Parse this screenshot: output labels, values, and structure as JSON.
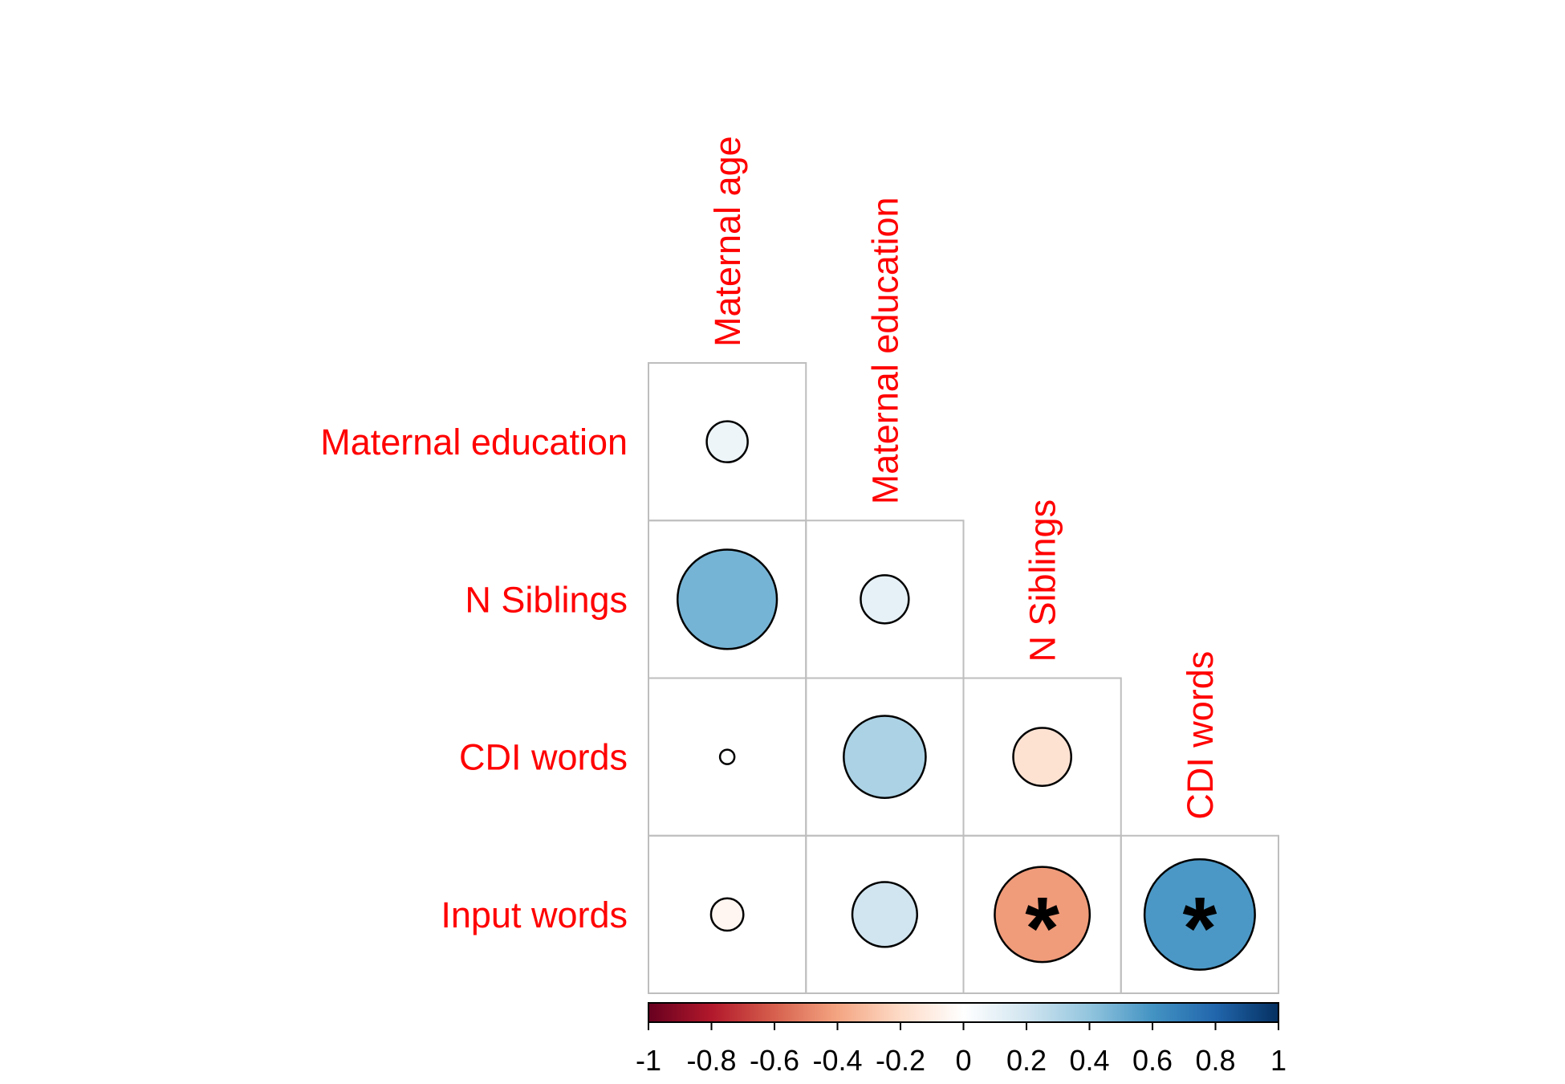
{
  "chart_data": {
    "type": "heatmap",
    "variables": [
      "Maternal age",
      "Maternal education",
      "N Siblings",
      "CDI words",
      "Input words"
    ],
    "column_labels": [
      "Maternal age",
      "Maternal education",
      "N Siblings",
      "CDI words"
    ],
    "row_labels": [
      "Maternal education",
      "N Siblings",
      "CDI words",
      "Input words"
    ],
    "cells": [
      {
        "row": "Maternal education",
        "col": "Maternal age",
        "r": 0.08,
        "significant": false
      },
      {
        "row": "N Siblings",
        "col": "Maternal age",
        "r": 0.47,
        "significant": false
      },
      {
        "row": "N Siblings",
        "col": "Maternal education",
        "r": 0.11,
        "significant": false
      },
      {
        "row": "CDI words",
        "col": "Maternal age",
        "r": 0.01,
        "significant": false
      },
      {
        "row": "CDI words",
        "col": "Maternal education",
        "r": 0.32,
        "significant": false
      },
      {
        "row": "CDI words",
        "col": "N Siblings",
        "r": -0.16,
        "significant": false
      },
      {
        "row": "Input words",
        "col": "Maternal age",
        "r": -0.05,
        "significant": false
      },
      {
        "row": "Input words",
        "col": "Maternal education",
        "r": 0.2,
        "significant": false
      },
      {
        "row": "Input words",
        "col": "N Siblings",
        "r": -0.43,
        "significant": true
      },
      {
        "row": "Input words",
        "col": "CDI words",
        "r": 0.58,
        "significant": true
      }
    ],
    "significance_marker": "*",
    "colorbar": {
      "range": [
        -1,
        1
      ],
      "ticks": [
        "-1",
        "-0.8",
        "-0.6",
        "-0.4",
        "-0.2",
        "0",
        "0.2",
        "0.4",
        "0.6",
        "0.8",
        "1"
      ],
      "colors": [
        "#67001f",
        "#b2182b",
        "#d6604d",
        "#f4a582",
        "#fddbc7",
        "#ffffff",
        "#d1e5f0",
        "#92c5de",
        "#4393c3",
        "#2166ac",
        "#053061"
      ]
    },
    "label_color": "#ff0000",
    "grid_color": "#bebebe",
    "legend": "bottom"
  }
}
